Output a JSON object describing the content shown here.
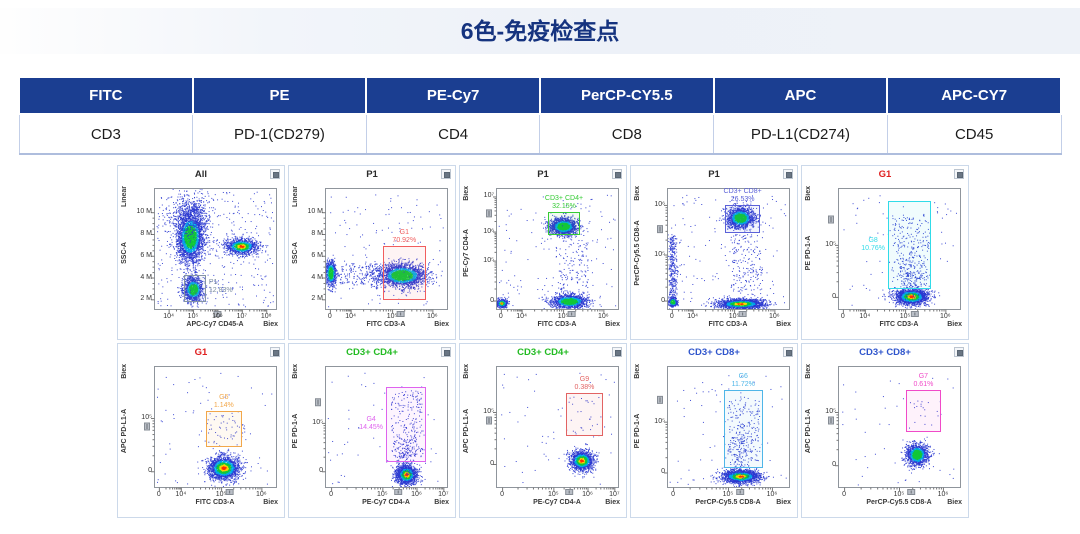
{
  "header": {
    "title": "6色-免疫检查点"
  },
  "panel_table": {
    "headers": [
      "FITC",
      "PE",
      "PE-Cy7",
      "PerCP-CY5.5",
      "APC",
      "APC-CY7"
    ],
    "markers": [
      "CD3",
      "PD-1(CD279)",
      "CD4",
      "CD8",
      "PD-L1(CD274)",
      "CD45"
    ],
    "header_bg": "#1b3e91",
    "header_text_color": "#ffffff"
  },
  "icons": {
    "panel_corner": "window-restore-icon"
  },
  "colors": {
    "title_text": "#15337f",
    "panel_border": "#ccd9ea",
    "axis_frame": "#8f959c"
  },
  "chart_data": [
    {
      "type": "scatter",
      "title": "All",
      "title_color": "#2b2b2b",
      "y_label": "SSC-A",
      "y_scale": "Linear",
      "x_label": "APC-Cy7 CD45-A",
      "x_scale": "Biex",
      "y_ticks": [
        {
          "label": "2 M",
          "f": 0.08
        },
        {
          "label": "4 M",
          "f": 0.26
        },
        {
          "label": "6 M",
          "f": 0.44
        },
        {
          "label": "8 M",
          "f": 0.62
        },
        {
          "label": "10 M",
          "f": 0.8
        }
      ],
      "x_ticks": [
        {
          "label": "10⁴",
          "f": 0.12
        },
        {
          "label": "10⁵",
          "f": 0.32
        },
        {
          "label": "10⁶",
          "f": 0.52
        },
        {
          "label": "10⁷",
          "f": 0.72
        },
        {
          "label": "10⁸",
          "f": 0.92
        }
      ],
      "y_scale_type": "linear",
      "x_scale_type": "biex",
      "x_slider_f": 0.52,
      "y_slider_f": null,
      "gate": {
        "name": "P1",
        "percent": "12.83%",
        "color": "#8494a4",
        "text_color": "#7b8ca0",
        "x0": 0.245,
        "x1": 0.425,
        "y0": 0.055,
        "y1": 0.285,
        "label_pos": "right"
      },
      "clusters": [
        {
          "type": "gauss",
          "cx": 0.295,
          "cy": 0.6,
          "sx": 0.055,
          "sy": 0.105,
          "n": 2600,
          "hot": 2
        },
        {
          "type": "gauss",
          "cx": 0.3,
          "cy": 0.78,
          "sx": 0.09,
          "sy": 0.09,
          "n": 500,
          "hot": 0
        },
        {
          "type": "gauss",
          "cx": 0.32,
          "cy": 0.165,
          "sx": 0.04,
          "sy": 0.05,
          "n": 1100,
          "hot": 2
        },
        {
          "type": "gauss",
          "cx": 0.715,
          "cy": 0.52,
          "sx": 0.065,
          "sy": 0.033,
          "n": 1100,
          "hot": 3
        },
        {
          "type": "box",
          "x0": 0.02,
          "x1": 0.98,
          "y0": 0.02,
          "y1": 0.98,
          "n": 380
        }
      ]
    },
    {
      "type": "scatter",
      "title": "P1",
      "title_color": "#2b2b2b",
      "y_label": "SSC-A",
      "y_scale": "Linear",
      "x_label": "FITC CD3-A",
      "x_scale": "Biex",
      "y_ticks": [
        {
          "label": "2 M",
          "f": 0.08
        },
        {
          "label": "4 M",
          "f": 0.26
        },
        {
          "label": "6 M",
          "f": 0.44
        },
        {
          "label": "8 M",
          "f": 0.62
        },
        {
          "label": "10 M",
          "f": 0.8
        }
      ],
      "x_ticks": [
        {
          "label": "0",
          "f": 0.04
        },
        {
          "label": "10⁴",
          "f": 0.21
        },
        {
          "label": "10⁵",
          "f": 0.55
        },
        {
          "label": "10⁶",
          "f": 0.88
        }
      ],
      "y_scale_type": "linear",
      "x_scale_type": "biex",
      "x_slider_f": 0.62,
      "y_slider_f": null,
      "gate": {
        "name": "G1",
        "percent": "70.92%",
        "color": "#f15e5e",
        "text_color": "#f15e5e",
        "x0": 0.475,
        "x1": 0.825,
        "y0": 0.075,
        "y1": 0.52,
        "label_pos": "above"
      },
      "clusters": [
        {
          "type": "gauss",
          "cx": 0.045,
          "cy": 0.3,
          "sx": 0.022,
          "sy": 0.055,
          "n": 650,
          "hot": 2
        },
        {
          "type": "gauss",
          "cx": 0.63,
          "cy": 0.28,
          "sx": 0.095,
          "sy": 0.048,
          "n": 2300,
          "hot": 2
        },
        {
          "type": "box",
          "x0": 0.1,
          "x1": 0.45,
          "y0": 0.2,
          "y1": 0.38,
          "n": 160
        },
        {
          "type": "box",
          "x0": 0.02,
          "x1": 0.98,
          "y0": 0.02,
          "y1": 0.95,
          "n": 120
        }
      ]
    },
    {
      "type": "scatter",
      "title": "P1",
      "title_color": "#2b2b2b",
      "y_label": "PE-Cy7 CD4-A",
      "y_scale": "Biex",
      "x_label": "FITC CD3-A",
      "x_scale": "Biex",
      "y_ticks": [
        {
          "label": "0",
          "f": 0.07
        },
        {
          "label": "10⁵",
          "f": 0.4
        },
        {
          "label": "10⁶",
          "f": 0.64
        },
        {
          "label": "10⁷",
          "f": 0.93
        }
      ],
      "x_ticks": [
        {
          "label": "0",
          "f": 0.04
        },
        {
          "label": "10⁴",
          "f": 0.21
        },
        {
          "label": "10⁵",
          "f": 0.55
        },
        {
          "label": "10⁶",
          "f": 0.88
        }
      ],
      "y_scale_type": "biex",
      "x_scale_type": "biex",
      "x_slider_f": 0.62,
      "y_slider_f": 0.79,
      "gate": {
        "name": "CD3+ CD4+",
        "percent": "32.15%",
        "color": "#35cb35",
        "text_color": "#35cb35",
        "x0": 0.425,
        "x1": 0.69,
        "y0": 0.615,
        "y1": 0.805,
        "label_pos": "above"
      },
      "clusters": [
        {
          "type": "gauss",
          "cx": 0.55,
          "cy": 0.685,
          "sx": 0.055,
          "sy": 0.035,
          "n": 1500,
          "hot": 2
        },
        {
          "type": "gauss",
          "cx": 0.6,
          "cy": 0.065,
          "sx": 0.075,
          "sy": 0.028,
          "n": 1300,
          "hot": 2
        },
        {
          "type": "gauss",
          "cx": 0.045,
          "cy": 0.05,
          "sx": 0.022,
          "sy": 0.018,
          "n": 450,
          "hot": 3
        },
        {
          "type": "box",
          "x0": 0.48,
          "x1": 0.75,
          "y0": 0.12,
          "y1": 0.58,
          "n": 130
        },
        {
          "type": "box",
          "x0": 0.02,
          "x1": 0.98,
          "y0": 0.02,
          "y1": 0.95,
          "n": 130
        }
      ]
    },
    {
      "type": "scatter",
      "title": "P1",
      "title_color": "#2b2b2b",
      "y_label": "PerCP-Cy5.5 CD8-A",
      "y_scale": "Biex",
      "x_label": "FITC CD3-A",
      "x_scale": "Biex",
      "y_ticks": [
        {
          "label": "0",
          "f": 0.07
        },
        {
          "label": "10⁵",
          "f": 0.45
        },
        {
          "label": "10⁶",
          "f": 0.86
        }
      ],
      "x_ticks": [
        {
          "label": "0",
          "f": 0.04
        },
        {
          "label": "10⁴",
          "f": 0.21
        },
        {
          "label": "10⁵",
          "f": 0.55
        },
        {
          "label": "10⁶",
          "f": 0.88
        }
      ],
      "y_scale_type": "biex",
      "x_scale_type": "biex",
      "x_slider_f": 0.62,
      "y_slider_f": 0.66,
      "gate": {
        "name": "CD3+ CD8+",
        "percent": "26.53%",
        "color": "#5b61d8",
        "text_color": "#5b61d8",
        "x0": 0.475,
        "x1": 0.765,
        "y0": 0.625,
        "y1": 0.86,
        "label_pos": "above"
      },
      "clusters": [
        {
          "type": "gauss",
          "cx": 0.6,
          "cy": 0.755,
          "sx": 0.055,
          "sy": 0.042,
          "n": 1500,
          "hot": 2
        },
        {
          "type": "col",
          "cx": 0.045,
          "sx": 0.018,
          "y0": 0.08,
          "y1": 0.62,
          "n": 320
        },
        {
          "type": "gauss",
          "cx": 0.045,
          "cy": 0.06,
          "sx": 0.02,
          "sy": 0.02,
          "n": 280,
          "hot": 2
        },
        {
          "type": "gauss",
          "cx": 0.6,
          "cy": 0.045,
          "sx": 0.095,
          "sy": 0.02,
          "n": 1700,
          "hot": 3
        },
        {
          "type": "box",
          "x0": 0.52,
          "x1": 0.78,
          "y0": 0.12,
          "y1": 0.62,
          "n": 170
        },
        {
          "type": "box",
          "x0": 0.02,
          "x1": 0.98,
          "y0": 0.02,
          "y1": 0.95,
          "n": 140
        }
      ]
    },
    {
      "type": "scatter",
      "title": "G1",
      "title_color": "#e02020",
      "y_label": "PE PD-1-A",
      "y_scale": "Biex",
      "x_label": "FITC CD3-A",
      "x_scale": "Biex",
      "y_ticks": [
        {
          "label": "0",
          "f": 0.1
        },
        {
          "label": "10⁵",
          "f": 0.53
        }
      ],
      "x_ticks": [
        {
          "label": "0",
          "f": 0.04
        },
        {
          "label": "10⁴",
          "f": 0.22
        },
        {
          "label": "10⁵",
          "f": 0.55
        },
        {
          "label": "10⁶",
          "f": 0.88
        }
      ],
      "y_scale_type": "biex",
      "x_scale_type": "biex",
      "x_slider_f": 0.63,
      "y_slider_f": 0.74,
      "gate": {
        "name": "G8",
        "percent": "10.76%",
        "color": "#30dbe8",
        "text_color": "#30dbe8",
        "x0": 0.41,
        "x1": 0.76,
        "y0": 0.165,
        "y1": 0.89,
        "label_pos": "left"
      },
      "clusters": [
        {
          "type": "gauss",
          "cx": 0.6,
          "cy": 0.105,
          "sx": 0.065,
          "sy": 0.033,
          "n": 1900,
          "hot": 3
        },
        {
          "type": "gauss",
          "cx": 0.585,
          "cy": 0.24,
          "sx": 0.06,
          "sy": 0.09,
          "n": 160,
          "hot": 0
        },
        {
          "type": "box",
          "x0": 0.44,
          "x1": 0.74,
          "y0": 0.25,
          "y1": 0.78,
          "n": 220
        },
        {
          "type": "box",
          "x0": 0.02,
          "x1": 0.98,
          "y0": 0.02,
          "y1": 0.95,
          "n": 70
        }
      ]
    },
    {
      "type": "scatter",
      "title": "G1",
      "title_color": "#e02020",
      "y_label": "APC PD-L1-A",
      "y_scale": "Biex",
      "x_label": "FITC CD3-A",
      "x_scale": "Biex",
      "y_ticks": [
        {
          "label": "0",
          "f": 0.13
        },
        {
          "label": "10⁵",
          "f": 0.57
        }
      ],
      "x_ticks": [
        {
          "label": "0",
          "f": 0.04
        },
        {
          "label": "10⁴",
          "f": 0.22
        },
        {
          "label": "10⁵",
          "f": 0.55
        },
        {
          "label": "10⁶",
          "f": 0.88
        }
      ],
      "y_scale_type": "biex",
      "x_scale_type": "biex",
      "x_slider_f": 0.62,
      "y_slider_f": 0.5,
      "gate": {
        "name": "G5",
        "percent": "1.14%",
        "color": "#f2a74a",
        "text_color": "#f2a74a",
        "x0": 0.425,
        "x1": 0.72,
        "y0": 0.33,
        "y1": 0.63,
        "label_pos": "above"
      },
      "clusters": [
        {
          "type": "gauss",
          "cx": 0.57,
          "cy": 0.16,
          "sx": 0.065,
          "sy": 0.05,
          "n": 1900,
          "hot": 3
        },
        {
          "type": "box",
          "x0": 0.42,
          "x1": 0.75,
          "y0": 0.32,
          "y1": 0.6,
          "n": 45
        },
        {
          "type": "box",
          "x0": 0.02,
          "x1": 0.98,
          "y0": 0.02,
          "y1": 0.95,
          "n": 70
        }
      ]
    },
    {
      "type": "scatter",
      "title": "CD3+ CD4+",
      "title_color": "#22bb22",
      "y_label": "PE PD-1-A",
      "y_scale": "Biex",
      "x_label": "PE-Cy7 CD4-A",
      "x_scale": "Biex",
      "y_ticks": [
        {
          "label": "0",
          "f": 0.13
        },
        {
          "label": "10⁵",
          "f": 0.53
        }
      ],
      "x_ticks": [
        {
          "label": "0",
          "f": 0.05
        },
        {
          "label": "10⁵",
          "f": 0.47
        },
        {
          "label": "10⁶",
          "f": 0.75
        },
        {
          "label": "10⁷",
          "f": 0.97
        }
      ],
      "y_scale_type": "biex",
      "x_scale_type": "biex",
      "x_slider_f": 0.6,
      "y_slider_f": 0.7,
      "gate": {
        "name": "G4",
        "percent": "14.45%",
        "color": "#df63ee",
        "text_color": "#df63ee",
        "x0": 0.5,
        "x1": 0.83,
        "y0": 0.21,
        "y1": 0.83,
        "label_pos": "left"
      },
      "clusters": [
        {
          "type": "gauss",
          "cx": 0.665,
          "cy": 0.105,
          "sx": 0.042,
          "sy": 0.04,
          "n": 1500,
          "hot": 3
        },
        {
          "type": "gauss",
          "cx": 0.655,
          "cy": 0.26,
          "sx": 0.05,
          "sy": 0.11,
          "n": 170,
          "hot": 0
        },
        {
          "type": "box",
          "x0": 0.54,
          "x1": 0.8,
          "y0": 0.25,
          "y1": 0.8,
          "n": 200
        },
        {
          "type": "box",
          "x0": 0.02,
          "x1": 0.98,
          "y0": 0.02,
          "y1": 0.95,
          "n": 60
        }
      ]
    },
    {
      "type": "scatter",
      "title": "CD3+ CD4+",
      "title_color": "#22bb22",
      "y_label": "APC PD-L1-A",
      "y_scale": "Biex",
      "x_label": "PE-Cy7 CD4-A",
      "x_scale": "Biex",
      "y_ticks": [
        {
          "label": "0",
          "f": 0.19
        },
        {
          "label": "10⁵",
          "f": 0.62
        }
      ],
      "x_ticks": [
        {
          "label": "0",
          "f": 0.05
        },
        {
          "label": "10⁵",
          "f": 0.47
        },
        {
          "label": "10⁶",
          "f": 0.75
        },
        {
          "label": "10⁷",
          "f": 0.97
        }
      ],
      "y_scale_type": "biex",
      "x_scale_type": "biex",
      "x_slider_f": 0.6,
      "y_slider_f": 0.55,
      "gate": {
        "name": "G9",
        "percent": "0.38%",
        "color": "#e26363",
        "text_color": "#e26363",
        "x0": 0.575,
        "x1": 0.875,
        "y0": 0.42,
        "y1": 0.78,
        "label_pos": "above"
      },
      "clusters": [
        {
          "type": "gauss",
          "cx": 0.7,
          "cy": 0.22,
          "sx": 0.048,
          "sy": 0.042,
          "n": 1400,
          "hot": 3
        },
        {
          "type": "box",
          "x0": 0.58,
          "x1": 0.86,
          "y0": 0.45,
          "y1": 0.75,
          "n": 22
        },
        {
          "type": "box",
          "x0": 0.02,
          "x1": 0.98,
          "y0": 0.02,
          "y1": 0.95,
          "n": 55
        }
      ]
    },
    {
      "type": "scatter",
      "title": "CD3+ CD8+",
      "title_color": "#2f55cc",
      "y_label": "PE PD-1-A",
      "y_scale": "Biex",
      "x_label": "PerCP-Cy5.5 CD8-A",
      "x_scale": "Biex",
      "y_ticks": [
        {
          "label": "0",
          "f": 0.12
        },
        {
          "label": "10⁵",
          "f": 0.54
        }
      ],
      "x_ticks": [
        {
          "label": "0",
          "f": 0.05
        },
        {
          "label": "10⁵",
          "f": 0.5
        },
        {
          "label": "10⁶",
          "f": 0.86
        }
      ],
      "y_scale_type": "biex",
      "x_scale_type": "biex",
      "x_slider_f": 0.6,
      "y_slider_f": 0.72,
      "gate": {
        "name": "G6",
        "percent": "11.72%",
        "color": "#4fb6e8",
        "text_color": "#4fb6e8",
        "x0": 0.465,
        "x1": 0.785,
        "y0": 0.16,
        "y1": 0.8,
        "label_pos": "above"
      },
      "clusters": [
        {
          "type": "gauss",
          "cx": 0.6,
          "cy": 0.09,
          "sx": 0.075,
          "sy": 0.026,
          "n": 1900,
          "hot": 3
        },
        {
          "type": "gauss",
          "cx": 0.6,
          "cy": 0.26,
          "sx": 0.055,
          "sy": 0.12,
          "n": 200,
          "hot": 0
        },
        {
          "type": "box",
          "x0": 0.5,
          "x1": 0.76,
          "y0": 0.22,
          "y1": 0.75,
          "n": 150
        },
        {
          "type": "box",
          "x0": 0.02,
          "x1": 0.98,
          "y0": 0.02,
          "y1": 0.95,
          "n": 60
        }
      ]
    },
    {
      "type": "scatter",
      "title": "CD3+ CD8+",
      "title_color": "#2f55cc",
      "y_label": "APC PD-L1-A",
      "y_scale": "Biex",
      "x_label": "PerCP-Cy5.5 CD8-A",
      "x_scale": "Biex",
      "y_ticks": [
        {
          "label": "0",
          "f": 0.18
        },
        {
          "label": "10⁵",
          "f": 0.62
        }
      ],
      "x_ticks": [
        {
          "label": "0",
          "f": 0.05
        },
        {
          "label": "10⁵",
          "f": 0.5
        },
        {
          "label": "10⁶",
          "f": 0.86
        }
      ],
      "y_scale_type": "biex",
      "x_scale_type": "biex",
      "x_slider_f": 0.6,
      "y_slider_f": 0.55,
      "gate": {
        "name": "G7",
        "percent": "0.61%",
        "color": "#f04ac8",
        "text_color": "#f04ac8",
        "x0": 0.555,
        "x1": 0.845,
        "y0": 0.455,
        "y1": 0.8,
        "label_pos": "above"
      },
      "clusters": [
        {
          "type": "gauss",
          "cx": 0.645,
          "cy": 0.27,
          "sx": 0.045,
          "sy": 0.045,
          "n": 1300,
          "hot": 2
        },
        {
          "type": "box",
          "x0": 0.58,
          "x1": 0.84,
          "y0": 0.5,
          "y1": 0.74,
          "n": 14
        },
        {
          "type": "box",
          "x0": 0.02,
          "x1": 0.98,
          "y0": 0.02,
          "y1": 0.95,
          "n": 45
        }
      ]
    }
  ]
}
